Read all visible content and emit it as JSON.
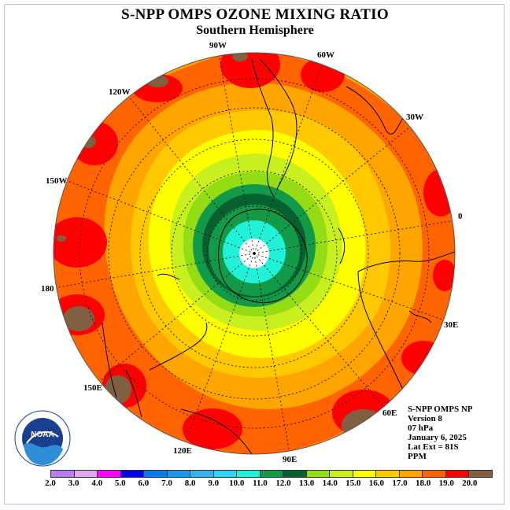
{
  "header": {
    "title": "S-NPP OMPS OZONE MIXING RATIO",
    "subtitle": "Southern Hemisphere"
  },
  "map": {
    "projection": "polar stereographic, south pole",
    "longitude_labels": [
      "90W",
      "60W",
      "30W",
      "0",
      "30E",
      "60E",
      "90E",
      "120E",
      "150E",
      "180",
      "150W",
      "120W"
    ],
    "colors": {
      "border": "#d7b4e0",
      "outer_ring": "#ffa500"
    }
  },
  "info": {
    "instrument": "S-NPP OMPS NP",
    "version": "Version 8",
    "pressure": "07 hPa",
    "date": "January 6, 2025",
    "lat_ext": "Lat Ext = 81S",
    "units": "PPM"
  },
  "colorbar": {
    "labels": [
      "2.0",
      "3.0",
      "4.0",
      "5.0",
      "6.0",
      "7.0",
      "8.0",
      "9.0",
      "10.0",
      "11.0",
      "12.0",
      "13.0",
      "14.0",
      "15.0",
      "16.0",
      "17.0",
      "18.0",
      "19.0",
      "20.0"
    ],
    "colors": [
      "#b67ff0",
      "#e0a8f0",
      "#ff00ff",
      "#0000ee",
      "#0a78ee",
      "#1e96f0",
      "#32b4f0",
      "#2dd4f5",
      "#20f2d8",
      "#129a48",
      "#066030",
      "#94dc14",
      "#c8f01e",
      "#ffff00",
      "#ffc800",
      "#ffa500",
      "#ff6400",
      "#ff0000",
      "#806040"
    ]
  },
  "logo": {
    "text": "NOAA",
    "ring_text": "NATIONAL OCEANIC AND ATMOSPHERIC ADMINISTRATION U.S. DEPARTMENT OF COMMERCE"
  }
}
